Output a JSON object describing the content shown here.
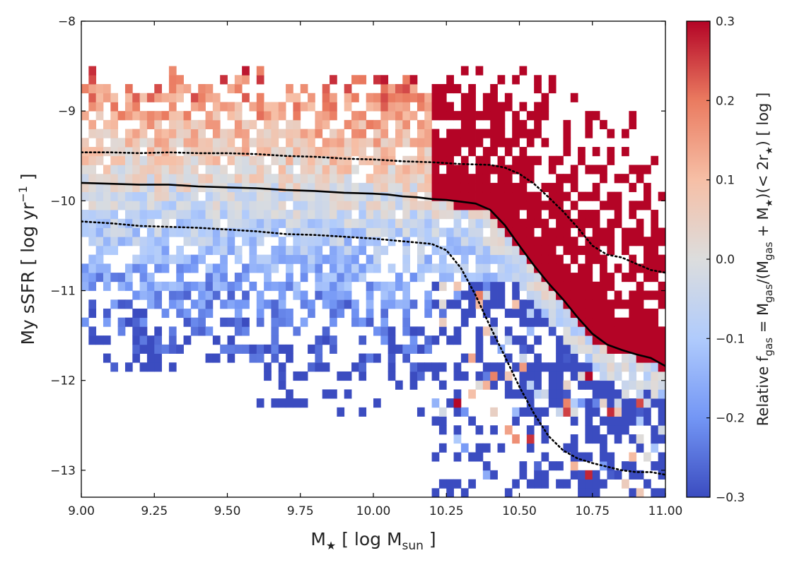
{
  "chart_data": {
    "type": "heatmap",
    "title": "",
    "xlabel": {
      "main": "M",
      "star": "★",
      "rest": " [ log M",
      "sub": "sun",
      "end": " ]"
    },
    "ylabel": {
      "main": "My sSFR [ log yr",
      "sup": "−1",
      "end": " ]"
    },
    "xlim": [
      9.0,
      11.0
    ],
    "ylim": [
      -13.3,
      -8.0
    ],
    "x_ticks": [
      9.0,
      9.25,
      9.5,
      9.75,
      10.0,
      10.25,
      10.5,
      10.75,
      11.0
    ],
    "x_tick_labels": [
      "9.00",
      "9.25",
      "9.50",
      "9.75",
      "10.00",
      "10.25",
      "10.50",
      "10.75",
      "11.00"
    ],
    "y_ticks": [
      -13,
      -12,
      -11,
      -10,
      -9,
      -8
    ],
    "y_tick_labels": [
      "−13",
      "−12",
      "−11",
      "−10",
      "−9",
      "−8"
    ],
    "colorbar": {
      "range": [
        -0.3,
        0.3
      ],
      "ticks": [
        -0.3,
        -0.2,
        -0.1,
        0.0,
        0.1,
        0.2,
        0.3
      ],
      "tick_labels": [
        "−0.3",
        "−0.2",
        "−0.1",
        "0.0",
        "0.1",
        "0.2",
        "0.3"
      ],
      "label": "Relative f_gas = M_gas/(M_gas + M★)(< 2r★) [ log ]",
      "colormap": "coolwarm",
      "colors": [
        "#3b4cc0",
        "#7396f5",
        "#b0cbfc",
        "#dcdddd",
        "#f6bfa6",
        "#ea7b60",
        "#b40426"
      ]
    },
    "heatmap_bins": {
      "x_bins": 80,
      "y_bins": 53,
      "bin_width_x": 0.025,
      "bin_width_y": 0.1
    },
    "series": [
      {
        "name": "median",
        "style": "solid",
        "color": "#000000",
        "x": [
          9.0,
          9.1,
          9.2,
          9.3,
          9.4,
          9.5,
          9.6,
          9.7,
          9.8,
          9.9,
          10.0,
          10.05,
          10.1,
          10.15,
          10.2,
          10.25,
          10.3,
          10.35,
          10.4,
          10.45,
          10.5,
          10.55,
          10.6,
          10.65,
          10.7,
          10.75,
          10.8,
          10.85,
          10.9,
          10.95,
          11.0
        ],
        "y": [
          -9.8,
          -9.81,
          -9.82,
          -9.82,
          -9.84,
          -9.85,
          -9.86,
          -9.88,
          -9.89,
          -9.91,
          -9.92,
          -9.93,
          -9.95,
          -9.96,
          -9.98,
          -9.99,
          -10.01,
          -10.03,
          -10.1,
          -10.27,
          -10.5,
          -10.72,
          -10.92,
          -11.1,
          -11.3,
          -11.48,
          -11.6,
          -11.66,
          -11.71,
          -11.75,
          -11.84
        ]
      },
      {
        "name": "upper-percentile",
        "style": "dotted",
        "color": "#000000",
        "x": [
          9.0,
          9.1,
          9.2,
          9.3,
          9.4,
          9.5,
          9.6,
          9.7,
          9.8,
          9.9,
          10.0,
          10.1,
          10.2,
          10.3,
          10.4,
          10.45,
          10.5,
          10.55,
          10.6,
          10.65,
          10.7,
          10.75,
          10.8,
          10.85,
          10.9,
          10.95,
          11.0
        ],
        "y": [
          -9.46,
          -9.46,
          -9.47,
          -9.46,
          -9.47,
          -9.47,
          -9.48,
          -9.5,
          -9.51,
          -9.53,
          -9.54,
          -9.56,
          -9.57,
          -9.59,
          -9.6,
          -9.63,
          -9.7,
          -9.81,
          -9.96,
          -10.12,
          -10.3,
          -10.5,
          -10.6,
          -10.63,
          -10.7,
          -10.77,
          -10.8
        ]
      },
      {
        "name": "lower-percentile",
        "style": "dotted",
        "color": "#000000",
        "x": [
          9.0,
          9.1,
          9.2,
          9.3,
          9.4,
          9.5,
          9.6,
          9.7,
          9.8,
          9.9,
          10.0,
          10.1,
          10.2,
          10.25,
          10.3,
          10.35,
          10.4,
          10.45,
          10.5,
          10.55,
          10.6,
          10.65,
          10.7,
          10.75,
          10.8,
          10.85,
          10.9,
          10.95,
          11.0
        ],
        "y": [
          -10.23,
          -10.25,
          -10.28,
          -10.29,
          -10.3,
          -10.32,
          -10.34,
          -10.37,
          -10.38,
          -10.4,
          -10.42,
          -10.45,
          -10.48,
          -10.55,
          -10.75,
          -11.05,
          -11.4,
          -11.73,
          -12.07,
          -12.37,
          -12.62,
          -12.78,
          -12.87,
          -12.92,
          -12.96,
          -13.0,
          -13.02,
          -13.02,
          -13.05
        ]
      }
    ]
  }
}
